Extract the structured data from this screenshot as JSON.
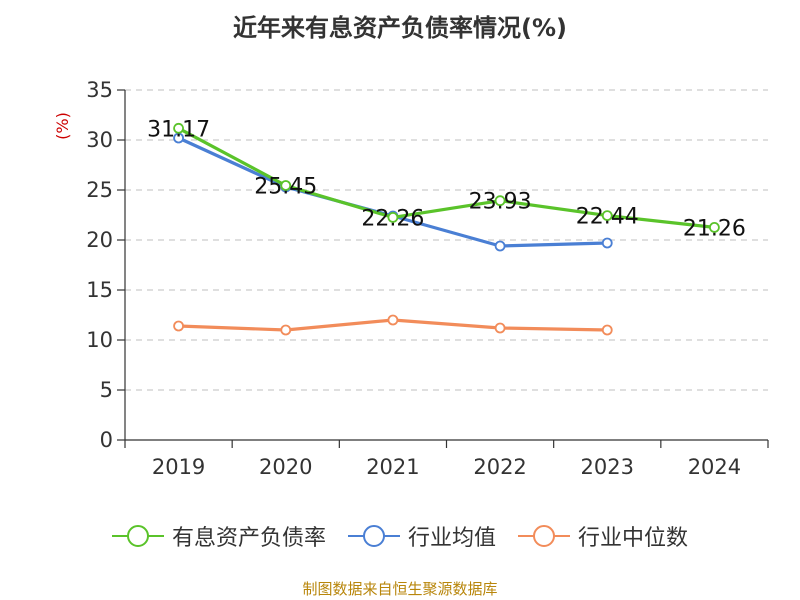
{
  "title": "近年来有息资产负债率情况(%)",
  "source": "制图数据来自恒生聚源数据库",
  "chart_data": {
    "type": "line",
    "title": "近年来有息资产负债率情况(%)",
    "ylabel": "(%)",
    "xlabel": "",
    "ylim": [
      0,
      35
    ],
    "yticks": [
      0,
      5,
      10,
      15,
      20,
      25,
      30,
      35
    ],
    "categories": [
      "2019",
      "2020",
      "2021",
      "2022",
      "2023",
      "2024"
    ],
    "grid": "horizontal dashed",
    "legend_position": "bottom",
    "series": [
      {
        "name": "有息资产负债率",
        "color": "#5ac32a",
        "values": [
          31.17,
          25.45,
          22.26,
          23.93,
          22.44,
          21.26
        ],
        "labels": [
          "31.17",
          "25.45",
          "22.26",
          "23.93",
          "22.44",
          "21.26"
        ]
      },
      {
        "name": "行业均值",
        "color": "#4a7fd4",
        "values": [
          30.2,
          25.3,
          22.4,
          19.4,
          19.7,
          null
        ]
      },
      {
        "name": "行业中位数",
        "color": "#f28c5a",
        "values": [
          11.4,
          11.0,
          12.0,
          11.2,
          11.0,
          null
        ]
      }
    ]
  }
}
